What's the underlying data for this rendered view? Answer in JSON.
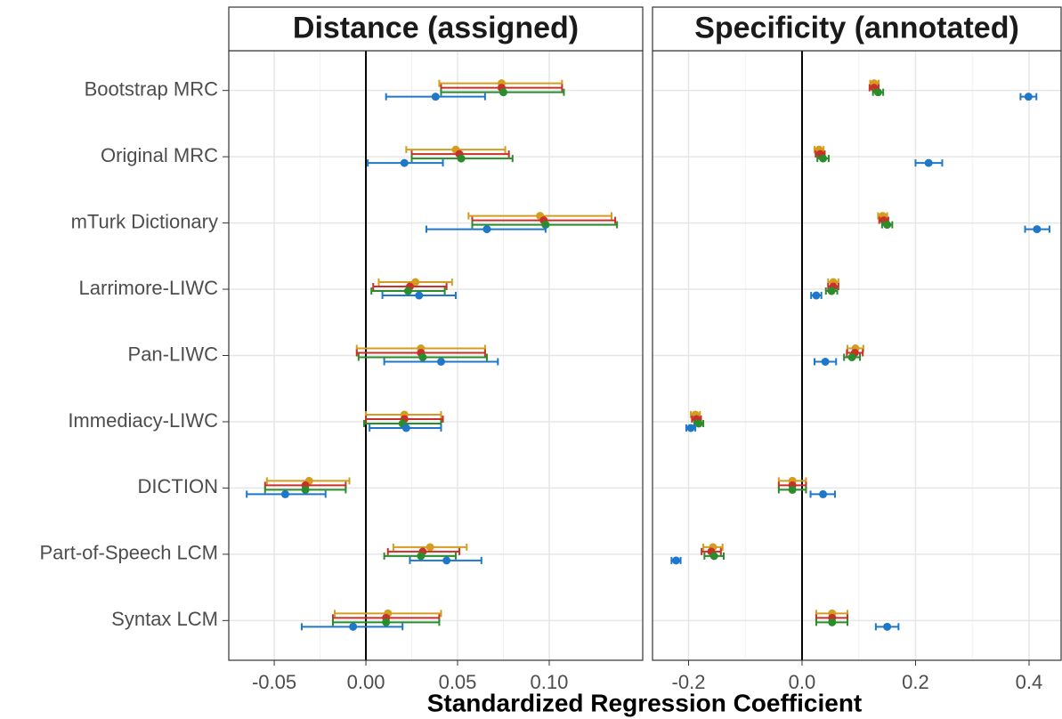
{
  "xlabel": "Standardized Regression Coefficient",
  "chart_data": [
    {
      "type": "errorbar",
      "title": "Distance (assigned)",
      "categories": [
        "Bootstrap MRC",
        "Original MRC",
        "mTurk Dictionary",
        "Larrimore-LIWC",
        "Pan-LIWC",
        "Immediacy-LIWC",
        "DICTION",
        "Part-of-Speech LCM",
        "Syntax LCM"
      ],
      "xlim": [
        -0.0748,
        0.151
      ],
      "xticks": [
        -0.05,
        {
          "value": 0,
          "label": "0.00"
        },
        0.05,
        {
          "value": 0.1,
          "label": "0.10"
        }
      ],
      "grid": true,
      "zero_line": true,
      "series": [
        {
          "color": "#d49d1f",
          "values": [
            0.074,
            0.049,
            0.095,
            0.027,
            0.03,
            0.021,
            -0.031,
            0.035,
            0.012
          ],
          "lower": [
            0.04,
            0.022,
            0.056,
            0.007,
            -0.005,
            0.0,
            -0.054,
            0.015,
            -0.017
          ],
          "upper": [
            0.107,
            0.076,
            0.134,
            0.047,
            0.065,
            0.041,
            -0.009,
            0.055,
            0.041
          ]
        },
        {
          "color": "#c8302a",
          "values": [
            0.074,
            0.051,
            0.097,
            0.024,
            0.03,
            0.021,
            -0.033,
            0.031,
            0.011
          ],
          "lower": [
            0.041,
            0.025,
            0.058,
            0.004,
            -0.005,
            0.0,
            -0.055,
            0.012,
            -0.018
          ],
          "upper": [
            0.107,
            0.078,
            0.136,
            0.044,
            0.065,
            0.042,
            -0.011,
            0.051,
            0.04
          ]
        },
        {
          "color": "#2a8c2a",
          "values": [
            0.075,
            0.052,
            0.098,
            0.023,
            0.031,
            0.02,
            -0.033,
            0.03,
            0.011
          ],
          "lower": [
            0.041,
            0.025,
            0.058,
            0.003,
            -0.004,
            -0.001,
            -0.055,
            0.01,
            -0.018
          ],
          "upper": [
            0.108,
            0.08,
            0.137,
            0.043,
            0.066,
            0.041,
            -0.011,
            0.049,
            0.04
          ]
        },
        {
          "color": "#1f77c9",
          "values": [
            0.038,
            0.021,
            0.066,
            0.029,
            0.041,
            0.022,
            -0.044,
            0.044,
            -0.007
          ],
          "lower": [
            0.011,
            0.001,
            0.033,
            0.009,
            0.01,
            0.002,
            -0.065,
            0.024,
            -0.035
          ],
          "upper": [
            0.065,
            0.042,
            0.098,
            0.049,
            0.072,
            0.041,
            -0.022,
            0.063,
            0.02
          ]
        }
      ]
    },
    {
      "type": "errorbar",
      "title": "Specificity (annotated)",
      "xlim": [
        -0.2635,
        0.4565
      ],
      "xticks": [
        -0.2,
        {
          "value": 0,
          "label": "0.0"
        },
        0.2,
        0.4
      ],
      "grid": true,
      "zero_line": true,
      "series": [
        {
          "color": "#d49d1f",
          "values": [
            0.127,
            0.03,
            0.142,
            0.055,
            0.094,
            -0.188,
            -0.017,
            -0.157,
            0.053
          ],
          "lower": [
            0.12,
            0.022,
            0.134,
            0.046,
            0.08,
            -0.196,
            -0.041,
            -0.174,
            0.025
          ],
          "upper": [
            0.135,
            0.038,
            0.15,
            0.064,
            0.108,
            -0.18,
            0.007,
            -0.14,
            0.08
          ]
        },
        {
          "color": "#c8302a",
          "values": [
            0.127,
            0.032,
            0.144,
            0.055,
            0.093,
            -0.186,
            -0.017,
            -0.16,
            0.053
          ],
          "lower": [
            0.119,
            0.024,
            0.136,
            0.046,
            0.079,
            -0.194,
            -0.041,
            -0.177,
            0.025
          ],
          "upper": [
            0.135,
            0.04,
            0.152,
            0.064,
            0.107,
            -0.178,
            0.007,
            -0.143,
            0.08
          ]
        },
        {
          "color": "#2a8c2a",
          "values": [
            0.134,
            0.037,
            0.15,
            0.052,
            0.088,
            -0.182,
            -0.017,
            -0.155,
            0.053
          ],
          "lower": [
            0.125,
            0.027,
            0.141,
            0.042,
            0.074,
            -0.19,
            -0.041,
            -0.172,
            0.025
          ],
          "upper": [
            0.143,
            0.047,
            0.159,
            0.062,
            0.102,
            -0.174,
            0.007,
            -0.138,
            0.08
          ]
        },
        {
          "color": "#1f77c9",
          "values": [
            0.399,
            0.223,
            0.414,
            0.025,
            0.041,
            -0.196,
            0.037,
            -0.222,
            0.15
          ],
          "lower": [
            0.385,
            0.2,
            0.393,
            0.016,
            0.022,
            -0.204,
            0.015,
            -0.23,
            0.13
          ],
          "upper": [
            0.413,
            0.247,
            0.436,
            0.034,
            0.06,
            -0.188,
            0.058,
            -0.214,
            0.17
          ]
        }
      ]
    }
  ]
}
